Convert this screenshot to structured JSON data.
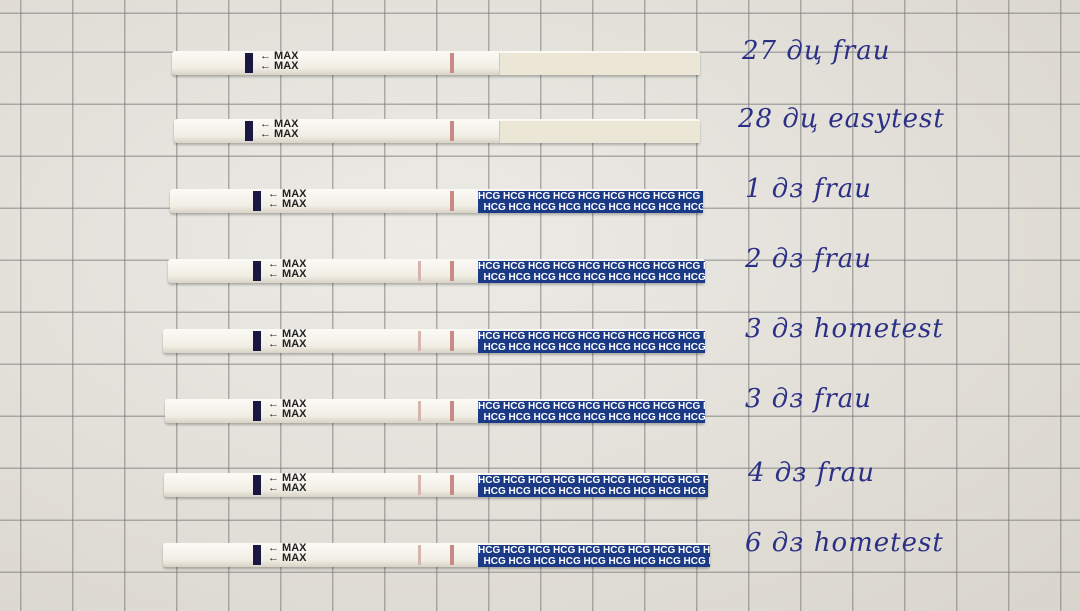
{
  "strip_print": {
    "arrow_text": "← MAX",
    "pad_text": "HCG"
  },
  "rows": [
    {
      "label": "27 дц frau",
      "pad": "plain",
      "test_line": false
    },
    {
      "label": "28 дц easytest",
      "pad": "plain",
      "test_line": false
    },
    {
      "label": "1 дз frau",
      "pad": "hcg",
      "test_line": false
    },
    {
      "label": "2 дз frau",
      "pad": "hcg",
      "test_line": true
    },
    {
      "label": "3 дз hometest",
      "pad": "hcg",
      "test_line": true
    },
    {
      "label": "3 дз frau",
      "pad": "hcg",
      "test_line": true
    },
    {
      "label": "4 дз frau",
      "pad": "hcg",
      "test_line": true
    },
    {
      "label": "6 дз hometest",
      "pad": "hcg",
      "test_line": true
    }
  ],
  "colors": {
    "ink": "#2b2f86",
    "pad_blue": "#1b3a86",
    "control_line": "#c98a86"
  }
}
